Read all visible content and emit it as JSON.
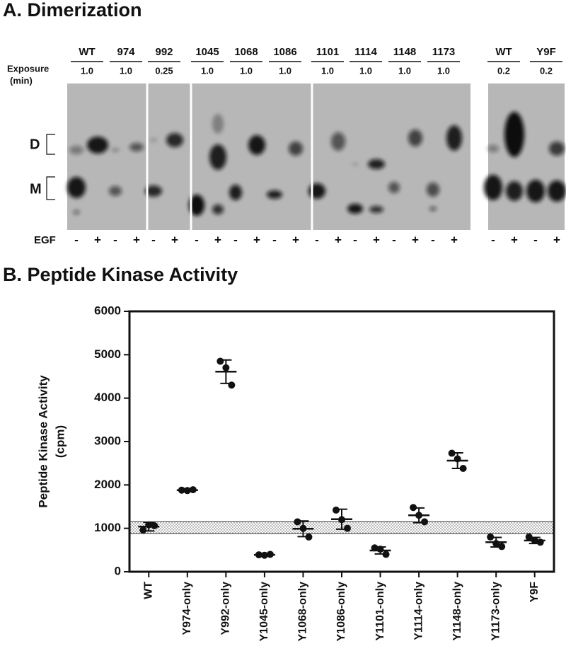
{
  "panel_a": {
    "title": "A. Dimerization",
    "exposure_label": [
      "Exposure",
      "(min)"
    ],
    "lanes": [
      {
        "label": "WT",
        "exposure": "1.0"
      },
      {
        "label": "974",
        "exposure": "1.0"
      },
      {
        "label": "992",
        "exposure": "0.25"
      },
      {
        "label": "1045",
        "exposure": "1.0"
      },
      {
        "label": "1068",
        "exposure": "1.0"
      },
      {
        "label": "1086",
        "exposure": "1.0"
      },
      {
        "label": "1101",
        "exposure": "1.0"
      },
      {
        "label": "1114",
        "exposure": "1.0"
      },
      {
        "label": "1148",
        "exposure": "1.0"
      },
      {
        "label": "1173",
        "exposure": "1.0"
      },
      {
        "label": "WT",
        "exposure": "0.2"
      },
      {
        "label": "Y9F",
        "exposure": "0.2"
      }
    ],
    "band_labels": [
      "D",
      "M"
    ],
    "egf_label": "EGF",
    "egf_signs": [
      "-",
      "+"
    ]
  },
  "chart_data": {
    "type": "dotplot",
    "title": "B. Peptide Kinase Activity",
    "ylabel": "Peptide Kinase Activity",
    "ylabel_unit": "(cpm)",
    "categories": [
      "WT",
      "Y974-only",
      "Y992-only",
      "Y1045-only",
      "Y1068-only",
      "Y1086-only",
      "Y1101-only",
      "Y1114-only",
      "Y1148-only",
      "Y1173-only",
      "Y9F"
    ],
    "means": [
      1040,
      1880,
      4610,
      390,
      990,
      1210,
      490,
      1300,
      2560,
      680,
      720
    ],
    "errors": [
      100,
      20,
      270,
      20,
      180,
      230,
      80,
      170,
      180,
      110,
      70
    ],
    "points": [
      [
        960,
        1080,
        1060
      ],
      [
        1880,
        1870,
        1890
      ],
      [
        4850,
        4700,
        4300
      ],
      [
        390,
        380,
        400
      ],
      [
        1150,
        1000,
        800
      ],
      [
        1420,
        1200,
        1000
      ],
      [
        550,
        520,
        400
      ],
      [
        1480,
        1300,
        1150
      ],
      [
        2730,
        2600,
        2380
      ],
      [
        800,
        650,
        580
      ],
      [
        800,
        720,
        680
      ]
    ],
    "reference_band": [
      880,
      1150
    ],
    "ylim": [
      0,
      6000
    ],
    "yticks": [
      0,
      1000,
      2000,
      3000,
      4000,
      5000,
      6000
    ],
    "color": "#111111"
  }
}
